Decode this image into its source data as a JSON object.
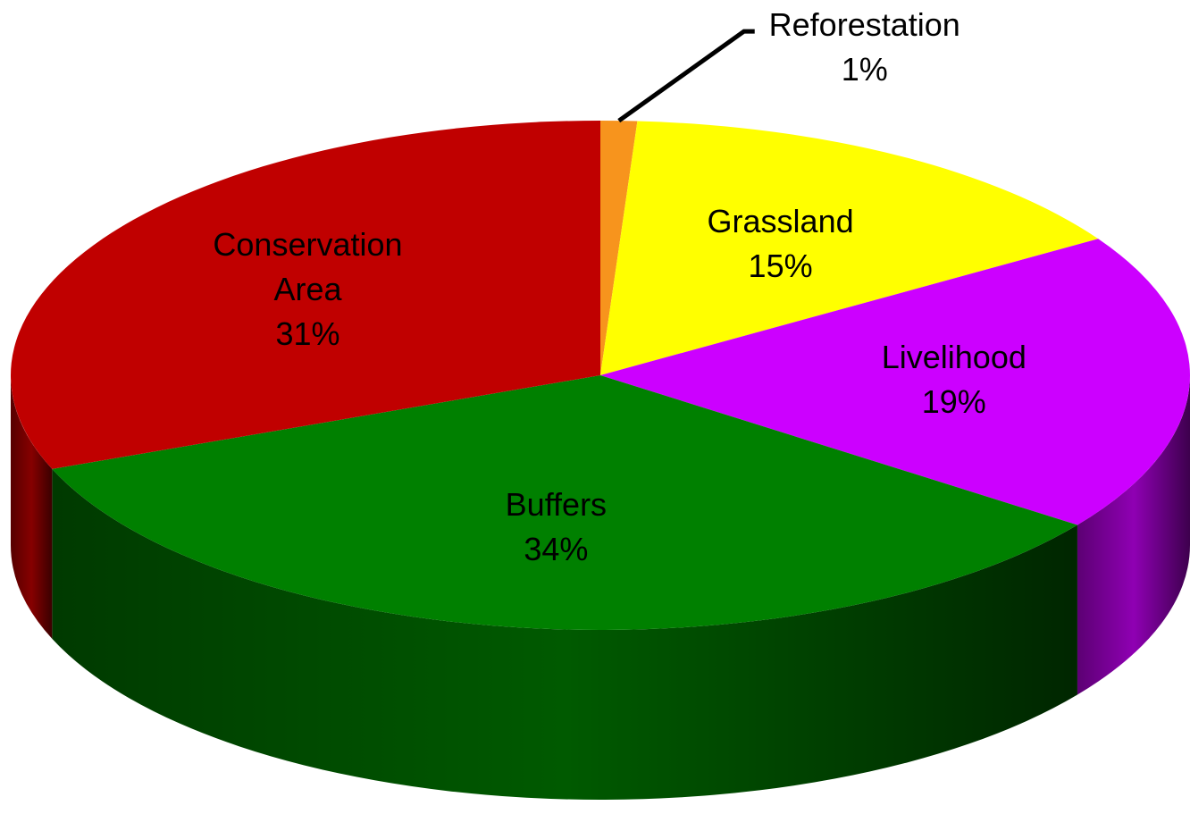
{
  "chart_data": {
    "type": "pie",
    "categories": [
      "Reforestation",
      "Grassland",
      "Livelihood",
      "Buffers",
      "Conservation Area"
    ],
    "values": [
      1,
      15,
      19,
      34,
      31
    ],
    "value_labels": [
      "1%",
      "15%",
      "19%",
      "34%",
      "31%"
    ],
    "colors": [
      "#f7941d",
      "#ffff00",
      "#cc00ff",
      "#008000",
      "#c00000"
    ]
  }
}
